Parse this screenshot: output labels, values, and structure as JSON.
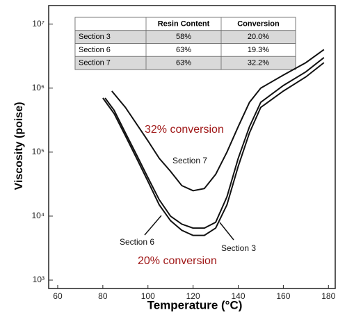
{
  "chart_data": {
    "type": "line",
    "xlabel": "Temperature (°C)",
    "ylabel": "Viscosity (poise)",
    "log_y": true,
    "xlim": [
      56,
      183
    ],
    "ylim": [
      740,
      19500000
    ],
    "xticks": [
      60,
      80,
      100,
      120,
      140,
      160,
      180
    ],
    "yticks": [
      {
        "value": 1000,
        "label": "10³"
      },
      {
        "value": 10000,
        "label": "10⁴"
      },
      {
        "value": 100000,
        "label": "10⁵"
      },
      {
        "value": 1000000,
        "label": "10⁶"
      },
      {
        "value": 10000000,
        "label": "10⁷"
      }
    ],
    "series": [
      {
        "name": "Section 7",
        "color": "#111111",
        "x": [
          84,
          90,
          100,
          105,
          110,
          115,
          120,
          125,
          130,
          135,
          140,
          145,
          150,
          160,
          170,
          178
        ],
        "values": [
          900000,
          500000,
          150000,
          80000,
          50000,
          30000,
          25000,
          27000,
          45000,
          100000,
          250000,
          600000,
          1000000,
          1600000,
          2500000,
          4000000
        ]
      },
      {
        "name": "Section 6",
        "color": "#111111",
        "x": [
          80,
          85,
          90,
          95,
          100,
          105,
          110,
          115,
          120,
          125,
          130,
          135,
          140,
          145,
          150,
          160,
          170,
          178
        ],
        "values": [
          700000,
          400000,
          180000,
          80000,
          35000,
          15000,
          8500,
          6000,
          5000,
          5000,
          6500,
          15000,
          60000,
          200000,
          500000,
          900000,
          1500000,
          2500000
        ]
      },
      {
        "name": "Section 3",
        "color": "#111111",
        "x": [
          81,
          85,
          90,
          95,
          100,
          105,
          110,
          115,
          120,
          125,
          130,
          135,
          140,
          145,
          150,
          160,
          170,
          178
        ],
        "values": [
          700000,
          450000,
          200000,
          90000,
          40000,
          18000,
          10000,
          7500,
          6500,
          6500,
          8000,
          20000,
          80000,
          250000,
          600000,
          1100000,
          1800000,
          3000000
        ]
      }
    ],
    "annotations": [
      "32% conversion",
      "20% conversion"
    ],
    "table": {
      "columns": [
        "Resin Content",
        "Conversion"
      ],
      "rows": [
        [
          "Section 3",
          "58%",
          "20.0%"
        ],
        [
          "Section 6",
          "63%",
          "19.3%"
        ],
        [
          "Section 7",
          "63%",
          "32.2%"
        ]
      ]
    }
  }
}
